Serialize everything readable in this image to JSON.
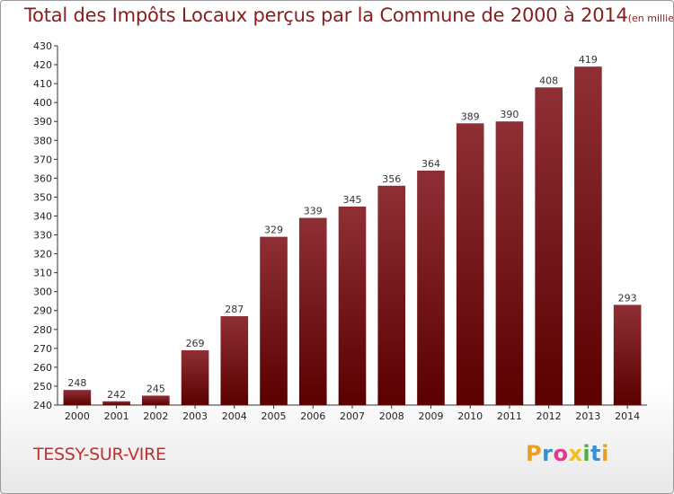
{
  "title": {
    "main": "Total des Impôts Locaux perçus par la Commune de 2000 à 2014",
    "unit": "(en milliers d'€)"
  },
  "commune": "TESSY-SUR-VIRE",
  "brand": {
    "letters": [
      "P",
      "r",
      "o",
      "x",
      "i",
      "t",
      "i"
    ],
    "colors": [
      "#e8a020",
      "#3a8fd0",
      "#e03a8a",
      "#f0c020",
      "#50b040",
      "#3a8fd0",
      "#e8a020"
    ]
  },
  "chart_data": {
    "type": "bar",
    "title": "Total des Impôts Locaux perçus par la Commune de 2000 à 2014",
    "xlabel": "",
    "ylabel": "",
    "categories": [
      "2000",
      "2001",
      "2002",
      "2003",
      "2004",
      "2005",
      "2006",
      "2007",
      "2008",
      "2009",
      "2010",
      "2011",
      "2012",
      "2013",
      "2014"
    ],
    "values": [
      248,
      242,
      245,
      269,
      287,
      329,
      339,
      345,
      356,
      364,
      389,
      390,
      408,
      419,
      293
    ],
    "ylim": [
      240,
      430
    ],
    "ytick_step": 10,
    "grid": false,
    "bar_color_top": "#8e2f35",
    "bar_color_bottom": "#5a0000"
  }
}
